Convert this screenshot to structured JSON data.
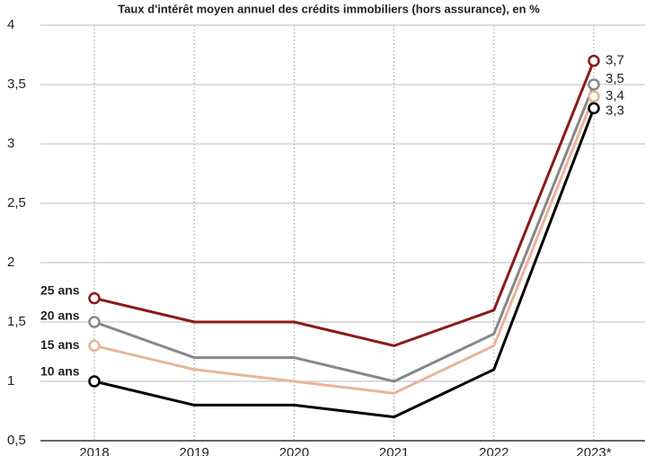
{
  "chart_data": {
    "type": "line",
    "title": "Taux d'intérêt moyen annuel des crédits immobiliers (hors assurance), en %",
    "categories": [
      "2018",
      "2019",
      "2020",
      "2021",
      "2022",
      "2023*"
    ],
    "ylim": [
      0.5,
      4
    ],
    "yticks": [
      {
        "value": 0.5,
        "label": "0,5"
      },
      1,
      {
        "value": 1.5,
        "label": "1,5"
      },
      2,
      {
        "value": 2.5,
        "label": "2,5"
      },
      3,
      {
        "value": 3.5,
        "label": "3,5"
      },
      4
    ],
    "grid": true,
    "series": [
      {
        "name": "25 ans",
        "color": "#8b1a1a",
        "values": [
          1.7,
          1.5,
          1.5,
          1.3,
          1.6,
          3.7
        ],
        "value_labels": [
          null,
          null,
          null,
          null,
          null,
          "3,7"
        ]
      },
      {
        "name": "20 ans",
        "color": "#888888",
        "values": [
          1.5,
          1.2,
          1.2,
          1.0,
          1.4,
          3.5
        ],
        "value_labels": [
          null,
          null,
          null,
          null,
          null,
          "3,5"
        ]
      },
      {
        "name": "15 ans",
        "color": "#e8b49a",
        "values": [
          1.3,
          1.1,
          1.0,
          0.9,
          1.3,
          3.4
        ],
        "value_labels": [
          null,
          null,
          null,
          null,
          null,
          "3,4"
        ]
      },
      {
        "name": "10 ans",
        "color": "#000000",
        "values": [
          1.0,
          0.8,
          0.8,
          0.7,
          1.1,
          3.3
        ],
        "value_labels": [
          null,
          null,
          null,
          null,
          null,
          "3,3"
        ]
      }
    ]
  }
}
